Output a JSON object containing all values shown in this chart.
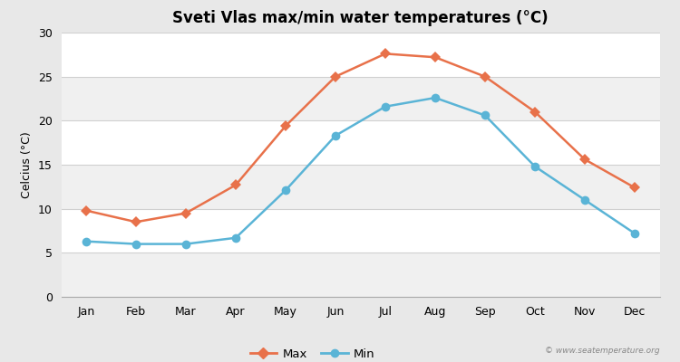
{
  "title": "Sveti Vlas max/min water temperatures (°C)",
  "ylabel": "Celcius (°C)",
  "months": [
    "Jan",
    "Feb",
    "Mar",
    "Apr",
    "May",
    "Jun",
    "Jul",
    "Aug",
    "Sep",
    "Oct",
    "Nov",
    "Dec"
  ],
  "max_temps": [
    9.8,
    8.5,
    9.5,
    12.7,
    19.4,
    25.0,
    27.6,
    27.2,
    25.0,
    21.0,
    15.6,
    12.4
  ],
  "min_temps": [
    6.3,
    6.0,
    6.0,
    6.7,
    12.1,
    18.3,
    21.6,
    22.6,
    20.6,
    14.8,
    11.0,
    7.2
  ],
  "max_color": "#e8714a",
  "min_color": "#5ab4d6",
  "fig_bg_color": "#e8e8e8",
  "plot_bg_color": "#ffffff",
  "band_color_light": "#f0f0f0",
  "band_color_white": "#ffffff",
  "grid_line_color": "#d0d0d0",
  "ylim": [
    0,
    30
  ],
  "yticks": [
    0,
    5,
    10,
    15,
    20,
    25,
    30
  ],
  "watermark": "© www.seatemperature.org",
  "legend_max": "Max",
  "legend_min": "Min",
  "title_fontsize": 12,
  "axis_fontsize": 9,
  "ylabel_fontsize": 9
}
